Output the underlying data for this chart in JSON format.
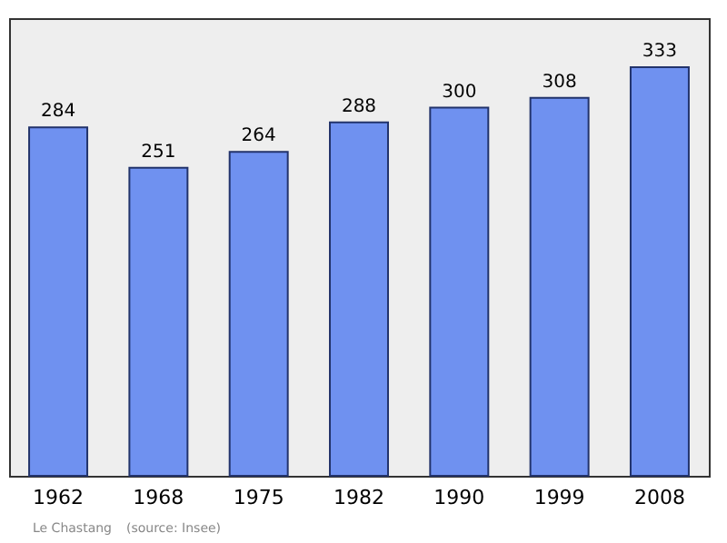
{
  "chart_data": {
    "type": "bar",
    "categories": [
      "1962",
      "1968",
      "1975",
      "1982",
      "1990",
      "1999",
      "2008"
    ],
    "values": [
      284,
      251,
      264,
      288,
      300,
      308,
      333
    ],
    "color": "#6f91f0",
    "data_labels": true,
    "tick_labels": "x",
    "annotations": [
      "Le Chastang",
      "(source: Insee)"
    ]
  }
}
